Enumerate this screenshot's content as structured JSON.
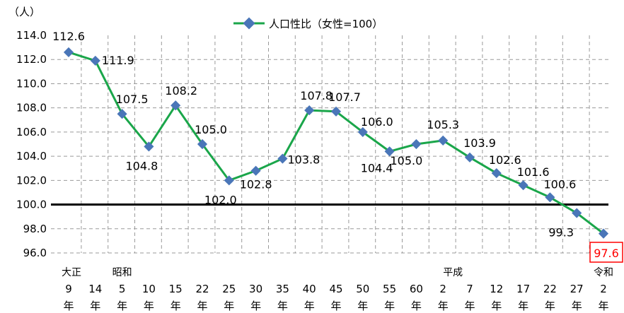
{
  "chart_data": {
    "type": "line",
    "title": "",
    "y_unit": "（人）",
    "ylim": [
      96.0,
      114.0
    ],
    "yticks": [
      "114.0",
      "112.0",
      "110.0",
      "108.0",
      "106.0",
      "104.0",
      "102.0",
      "100.0",
      "98.0",
      "96.0"
    ],
    "reference_line": 100.0,
    "legend": {
      "position": "top-center",
      "label": "人口性比（女性=100）"
    },
    "grid": {
      "vertical": true,
      "horizontal": true,
      "style": "dashed"
    },
    "colors": {
      "line": "#1aa64a",
      "marker": "#4a76b8",
      "highlight_text": "#ff0000",
      "highlight_border": "#ff0000"
    },
    "categories": [
      {
        "num": "9",
        "nen": "年"
      },
      {
        "num": "14",
        "nen": "年"
      },
      {
        "num": "5",
        "nen": "年"
      },
      {
        "num": "10",
        "nen": "年"
      },
      {
        "num": "15",
        "nen": "年"
      },
      {
        "num": "22",
        "nen": "年"
      },
      {
        "num": "25",
        "nen": "年"
      },
      {
        "num": "30",
        "nen": "年"
      },
      {
        "num": "35",
        "nen": "年"
      },
      {
        "num": "40",
        "nen": "年"
      },
      {
        "num": "45",
        "nen": "年"
      },
      {
        "num": "50",
        "nen": "年"
      },
      {
        "num": "55",
        "nen": "年"
      },
      {
        "num": "60",
        "nen": "年"
      },
      {
        "num": "2",
        "nen": "年"
      },
      {
        "num": "7",
        "nen": "年"
      },
      {
        "num": "12",
        "nen": "年"
      },
      {
        "num": "17",
        "nen": "年"
      },
      {
        "num": "22",
        "nen": "年"
      },
      {
        "num": "27",
        "nen": "年"
      },
      {
        "num": "2",
        "nen": "年"
      }
    ],
    "eras": [
      {
        "label": "大正",
        "index": 0
      },
      {
        "label": "昭和",
        "index": 2
      },
      {
        "label": "平成",
        "index": 14
      },
      {
        "label": "令和",
        "index": 20
      }
    ],
    "series": [
      {
        "name": "人口性比（女性=100）",
        "values": [
          112.6,
          111.9,
          107.5,
          104.8,
          108.2,
          105.0,
          102.0,
          102.8,
          103.8,
          107.8,
          107.7,
          106.0,
          104.4,
          105.0,
          105.3,
          103.9,
          102.6,
          101.6,
          100.6,
          99.3,
          97.6
        ],
        "labels": [
          "112.6",
          "111.9",
          "107.5",
          "104.8",
          "108.2",
          "105.0",
          "102.0",
          "102.8",
          "103.8",
          "107.8",
          "107.7",
          "106.0",
          "104.4",
          "105.0",
          "105.3",
          "103.9",
          "102.6",
          "101.6",
          "100.6",
          "99.3",
          "97.6"
        ]
      }
    ],
    "highlight_index": 20
  }
}
